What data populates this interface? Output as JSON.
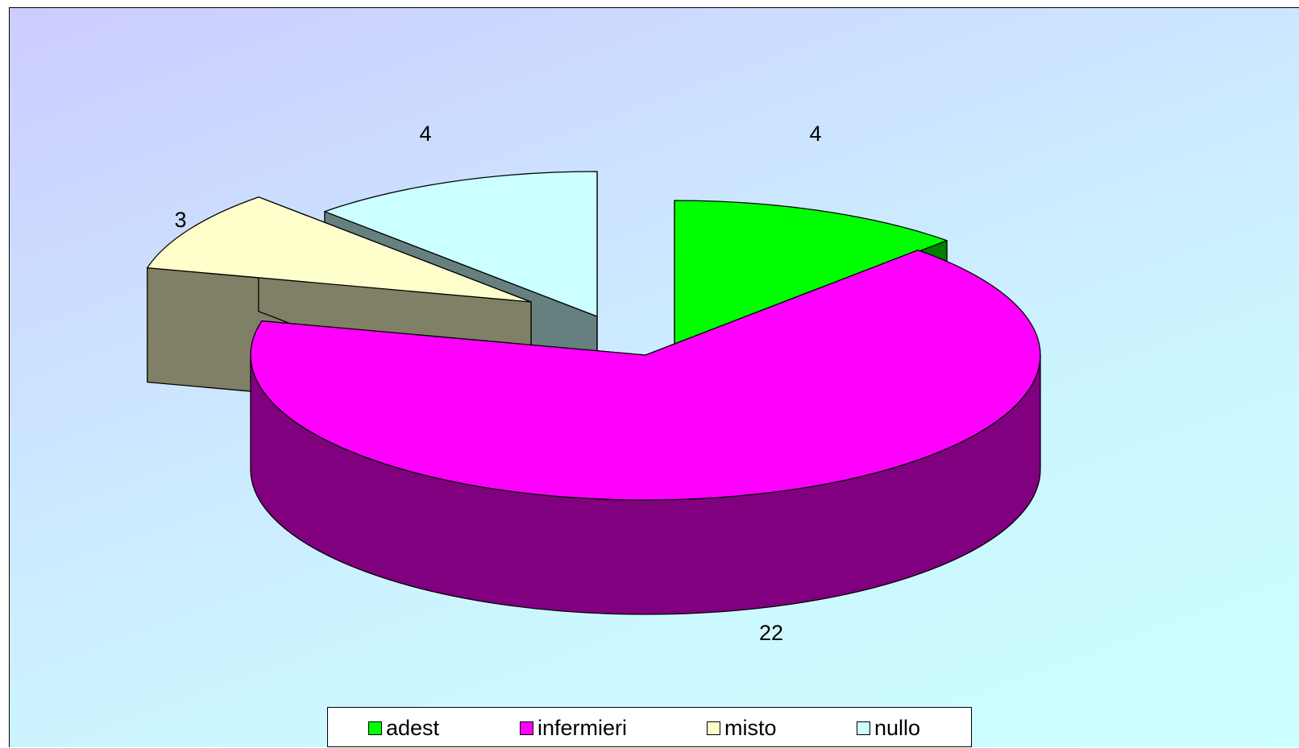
{
  "chart_data": {
    "type": "pie",
    "three_d": true,
    "exploded": true,
    "categories": [
      "adest",
      "infermieri",
      "misto",
      "nullo"
    ],
    "values": [
      4,
      22,
      3,
      4
    ],
    "colors": {
      "top": [
        "#00ff00",
        "#ff00ff",
        "#ffffcc",
        "#ccffff"
      ],
      "side": [
        "#008000",
        "#800080",
        "#808066",
        "#668080"
      ]
    },
    "data_labels": [
      "4",
      "22",
      "3",
      "4"
    ],
    "legend_position": "bottom",
    "background": [
      "#ccccff",
      "#ccffff"
    ]
  }
}
